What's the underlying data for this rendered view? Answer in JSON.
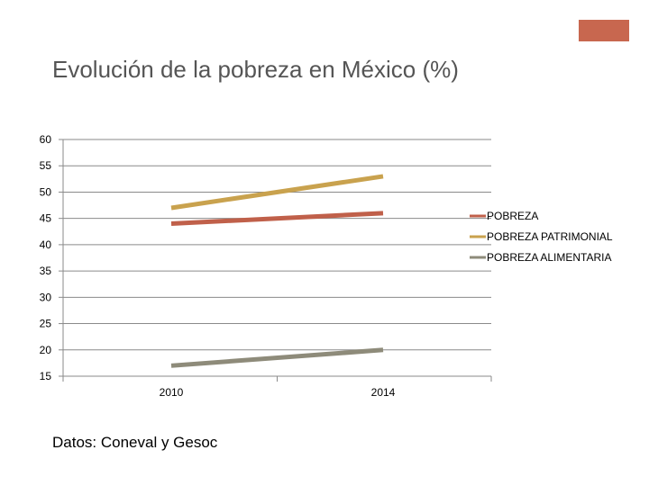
{
  "slide": {
    "title": "Evolución de la pobreza en México (%)",
    "source": "Datos: Coneval y Gesoc",
    "accent_color": "#c8674f"
  },
  "chart_data": {
    "type": "line",
    "categories": [
      "2010",
      "2014"
    ],
    "ylim": [
      15,
      60
    ],
    "yticks": [
      15,
      20,
      25,
      30,
      35,
      40,
      45,
      50,
      55,
      60
    ],
    "grid": true,
    "legend_position": "right",
    "series": [
      {
        "name": "POBREZA",
        "values": [
          44,
          46
        ],
        "color": "#c0604a"
      },
      {
        "name": "POBREZA PATRIMONIAL",
        "values": [
          47,
          53
        ],
        "color": "#c9a24e"
      },
      {
        "name": "POBREZA ALIMENTARIA",
        "values": [
          17,
          20
        ],
        "color": "#8e8b7a"
      }
    ]
  }
}
